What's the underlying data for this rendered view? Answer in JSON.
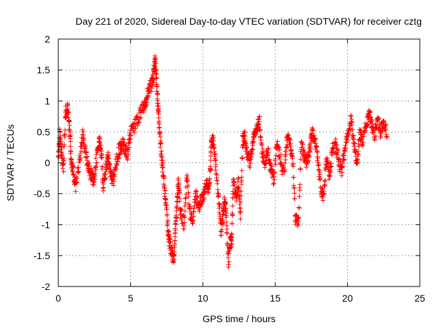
{
  "chart_data": {
    "type": "scatter",
    "title": "Day 221 of 2020, Sidereal Day-to-day VTEC variation (SDTVAR) for receiver cztg",
    "xlabel": "GPS time / hours",
    "ylabel": "SDTVAR / TECUs",
    "xlim": [
      0,
      25
    ],
    "ylim": [
      -2,
      2
    ],
    "xticks": [
      0,
      5,
      10,
      15,
      20,
      25
    ],
    "yticks": [
      -2,
      -1.5,
      -1,
      -0.5,
      0,
      0.5,
      1,
      1.5,
      2
    ],
    "grid": true,
    "marker": "+",
    "color": "#ff0000",
    "series": [
      {
        "name": "SDTVAR",
        "trend": [
          [
            0.0,
            0.1
          ],
          [
            0.1,
            0.5
          ],
          [
            0.2,
            0.2
          ],
          [
            0.35,
            -0.1
          ],
          [
            0.5,
            0.8
          ],
          [
            0.65,
            0.9
          ],
          [
            0.8,
            0.5
          ],
          [
            0.9,
            0.0
          ],
          [
            1.05,
            -0.15
          ],
          [
            1.2,
            -0.4
          ],
          [
            1.5,
            0.1
          ],
          [
            1.7,
            0.45
          ],
          [
            1.9,
            0.15
          ],
          [
            2.1,
            -0.1
          ],
          [
            2.3,
            -0.2
          ],
          [
            2.45,
            -0.3
          ],
          [
            2.6,
            0.0
          ],
          [
            2.8,
            0.35
          ],
          [
            2.95,
            0.25
          ],
          [
            3.1,
            -0.4
          ],
          [
            3.3,
            -0.1
          ],
          [
            3.45,
            0.15
          ],
          [
            3.6,
            -0.2
          ],
          [
            3.8,
            -0.3
          ],
          [
            4.0,
            0.0
          ],
          [
            4.2,
            0.2
          ],
          [
            4.4,
            0.3
          ],
          [
            4.6,
            0.25
          ],
          [
            4.8,
            0.15
          ],
          [
            5.0,
            0.5
          ],
          [
            5.3,
            0.6
          ],
          [
            5.6,
            0.75
          ],
          [
            5.9,
            0.9
          ],
          [
            6.1,
            1.05
          ],
          [
            6.3,
            1.2
          ],
          [
            6.5,
            1.3
          ],
          [
            6.6,
            1.45
          ],
          [
            6.7,
            1.65
          ],
          [
            6.8,
            1.3
          ],
          [
            6.9,
            0.9
          ],
          [
            7.0,
            0.5
          ],
          [
            7.15,
            0.1
          ],
          [
            7.3,
            -0.3
          ],
          [
            7.45,
            -0.7
          ],
          [
            7.6,
            -1.1
          ],
          [
            7.7,
            -1.3
          ],
          [
            7.85,
            -1.45
          ],
          [
            8.0,
            -1.55
          ],
          [
            8.1,
            -1.05
          ],
          [
            8.2,
            -0.7
          ],
          [
            8.3,
            -0.3
          ],
          [
            8.45,
            -0.8
          ],
          [
            8.7,
            -1.0
          ],
          [
            8.9,
            -0.2
          ],
          [
            9.1,
            -0.8
          ],
          [
            9.3,
            -0.9
          ],
          [
            9.5,
            -0.5
          ],
          [
            9.7,
            -0.7
          ],
          [
            9.9,
            -0.6
          ],
          [
            10.05,
            -0.55
          ],
          [
            10.2,
            -0.3
          ],
          [
            10.35,
            -0.4
          ],
          [
            10.5,
            -0.2
          ],
          [
            10.6,
            0.4
          ],
          [
            10.75,
            0.3
          ],
          [
            10.9,
            -0.1
          ],
          [
            11.1,
            -0.6
          ],
          [
            11.25,
            -1.1
          ],
          [
            11.4,
            -0.9
          ],
          [
            11.5,
            -0.6
          ],
          [
            11.6,
            -0.8
          ],
          [
            11.75,
            -1.6
          ],
          [
            11.9,
            -1.3
          ],
          [
            12.0,
            -1.2
          ],
          [
            12.1,
            -0.3
          ],
          [
            12.3,
            -0.6
          ],
          [
            12.45,
            -0.3
          ],
          [
            12.6,
            -0.8
          ],
          [
            12.75,
            0.35
          ],
          [
            12.9,
            0.45
          ],
          [
            13.05,
            0.1
          ],
          [
            13.25,
            0.0
          ],
          [
            13.45,
            0.3
          ],
          [
            13.6,
            0.55
          ],
          [
            13.75,
            0.6
          ],
          [
            13.9,
            0.7
          ],
          [
            14.1,
            0.15
          ],
          [
            14.3,
            0.0
          ],
          [
            14.5,
            0.2
          ],
          [
            14.7,
            -0.1
          ],
          [
            14.9,
            -0.3
          ],
          [
            15.1,
            0.3
          ],
          [
            15.35,
            0.1
          ],
          [
            15.6,
            -0.2
          ],
          [
            15.8,
            0.4
          ],
          [
            16.0,
            0.3
          ],
          [
            16.2,
            0.15
          ],
          [
            16.4,
            -0.9
          ],
          [
            16.6,
            -1.0
          ],
          [
            16.8,
            0.3
          ],
          [
            17.0,
            0.1
          ],
          [
            17.2,
            0.0
          ],
          [
            17.4,
            0.25
          ],
          [
            17.55,
            0.5
          ],
          [
            17.75,
            0.35
          ],
          [
            17.95,
            0.05
          ],
          [
            18.15,
            -0.4
          ],
          [
            18.35,
            -0.55
          ],
          [
            18.55,
            0.1
          ],
          [
            18.75,
            -0.2
          ],
          [
            18.95,
            0.2
          ],
          [
            19.2,
            0.3
          ],
          [
            19.4,
            0.0
          ],
          [
            19.6,
            -0.1
          ],
          [
            19.8,
            0.2
          ],
          [
            20.0,
            0.4
          ],
          [
            20.25,
            0.7
          ],
          [
            20.45,
            0.3
          ],
          [
            20.65,
            0.0
          ],
          [
            20.85,
            0.45
          ],
          [
            21.05,
            0.35
          ],
          [
            21.3,
            0.65
          ],
          [
            21.5,
            0.8
          ],
          [
            21.7,
            0.6
          ],
          [
            21.9,
            0.45
          ],
          [
            22.1,
            0.7
          ],
          [
            22.3,
            0.5
          ],
          [
            22.5,
            0.6
          ],
          [
            22.75,
            0.5
          ]
        ]
      }
    ]
  }
}
